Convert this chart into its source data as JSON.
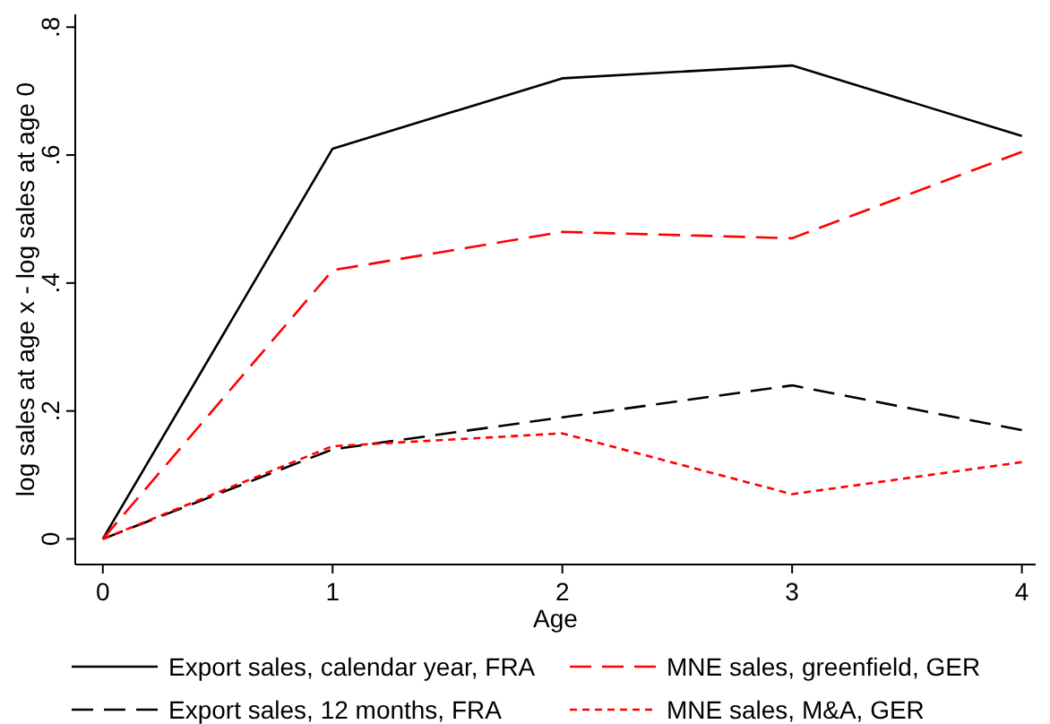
{
  "chart_data": {
    "type": "line",
    "xlabel": "Age",
    "ylabel": "log sales at age x - log sales at age 0",
    "x": [
      0,
      1,
      2,
      3,
      4
    ],
    "series": [
      {
        "name": "Export sales, calendar year, FRA",
        "color": "#000000",
        "line_style": "solid",
        "values": [
          0,
          0.61,
          0.72,
          0.74,
          0.63
        ]
      },
      {
        "name": "MNE sales, greenfield, GER",
        "color": "#ff0000",
        "line_style": "dashed",
        "values": [
          0,
          0.42,
          0.48,
          0.47,
          0.605
        ]
      },
      {
        "name": "Export sales, 12 months, FRA",
        "color": "#000000",
        "line_style": "dashed",
        "values": [
          0,
          0.14,
          0.19,
          0.24,
          0.17
        ]
      },
      {
        "name": "MNE sales, M&A, GER",
        "color": "#ff0000",
        "line_style": "dotted",
        "values": [
          0,
          0.145,
          0.165,
          0.07,
          0.12
        ]
      }
    ],
    "xlim": [
      -0.12,
      4.06
    ],
    "xticks": [
      0,
      1,
      2,
      3,
      4
    ],
    "ylim": [
      -0.04,
      0.82
    ],
    "yticks": [
      0,
      {
        "value": 0.2,
        "label": ".2"
      },
      {
        "value": 0.4,
        "label": ".4"
      },
      {
        "value": 0.6,
        "label": ".6"
      },
      {
        "value": 0.8,
        "label": ".8"
      }
    ],
    "grid": false,
    "legend": "bottom",
    "marker": "none"
  }
}
